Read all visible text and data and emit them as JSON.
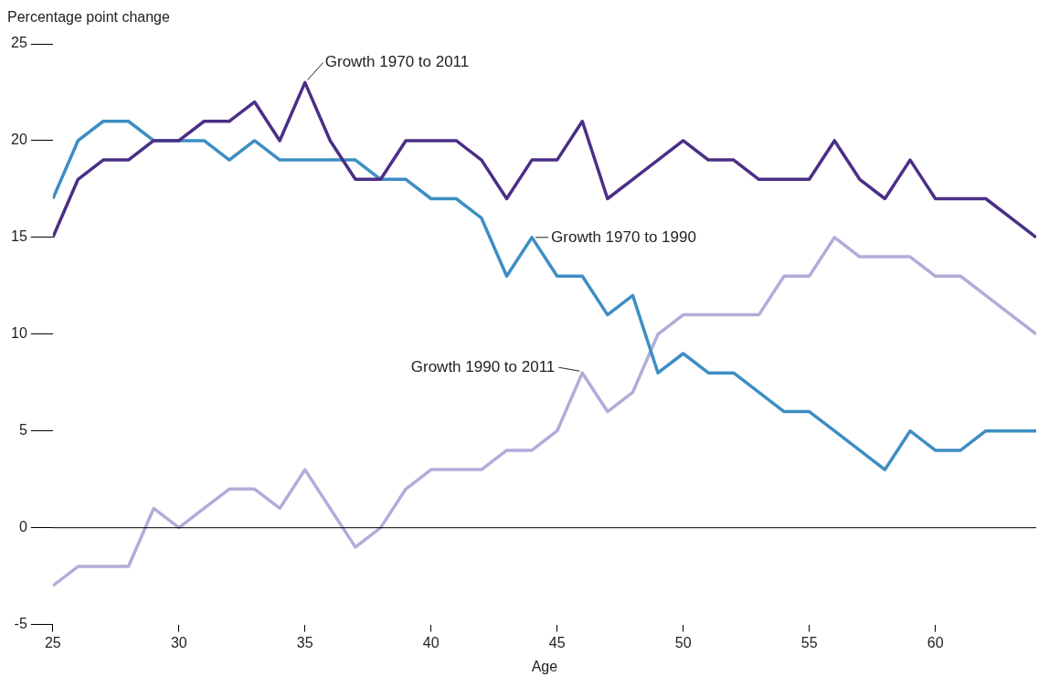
{
  "chart_data": {
    "type": "line",
    "xlabel": "Age",
    "ylabel": "Percentage point change",
    "x": [
      25,
      26,
      27,
      28,
      29,
      30,
      31,
      32,
      33,
      34,
      35,
      36,
      37,
      38,
      39,
      40,
      41,
      42,
      43,
      44,
      45,
      46,
      47,
      48,
      49,
      50,
      51,
      52,
      53,
      54,
      55,
      56,
      57,
      58,
      59,
      60,
      61,
      62,
      63,
      64
    ],
    "series": [
      {
        "color": "#4a2f86",
        "values": [
          15,
          18,
          19,
          19,
          20,
          20,
          21,
          21,
          22,
          20,
          23,
          20,
          18,
          18,
          20,
          20,
          20,
          19,
          17,
          19,
          19,
          21,
          17,
          18,
          19,
          20,
          19,
          19,
          18,
          18,
          18,
          20,
          18,
          17,
          19,
          17,
          17,
          17,
          16,
          15
        ]
      },
      {
        "color": "#3d8ec3",
        "values": [
          17,
          20,
          21,
          21,
          20,
          20,
          20,
          19,
          20,
          19,
          19,
          19,
          19,
          18,
          18,
          17,
          17,
          16,
          13,
          15,
          13,
          13,
          11,
          12,
          8,
          9,
          8,
          8,
          7,
          6,
          6,
          5,
          4,
          3,
          5,
          4,
          4,
          5,
          5,
          5
        ]
      },
      {
        "color": "#b3acd9",
        "values": [
          -3,
          -2,
          -2,
          -2,
          1,
          0,
          1,
          2,
          2,
          1,
          3,
          1,
          -1,
          0,
          2,
          3,
          3,
          3,
          4,
          4,
          5,
          8,
          6,
          7,
          10,
          11,
          11,
          11,
          11,
          13,
          13,
          15,
          14,
          14,
          14,
          13,
          13,
          12,
          11,
          10
        ]
      }
    ],
    "xlim": [
      25,
      64
    ],
    "xticks": [
      25,
      30,
      35,
      40,
      45,
      50,
      55,
      60
    ],
    "ylim": [
      -5,
      25
    ],
    "yticks": [
      -5,
      0,
      5,
      10,
      15,
      20,
      25
    ],
    "ref_lines": [
      {
        "axis": "y",
        "value": 0,
        "color": "#000000"
      }
    ],
    "annotations": [
      {
        "text": "Growth 1970 to 2011",
        "x": 35,
        "y": 23
      },
      {
        "text": "Growth 1970 to 1990",
        "x": 44,
        "y": 15
      },
      {
        "text": "Growth 1990 to 2011",
        "x": 46,
        "y": 8
      }
    ],
    "grid": false,
    "legend": false,
    "marker": "none",
    "line_style": "solid"
  }
}
